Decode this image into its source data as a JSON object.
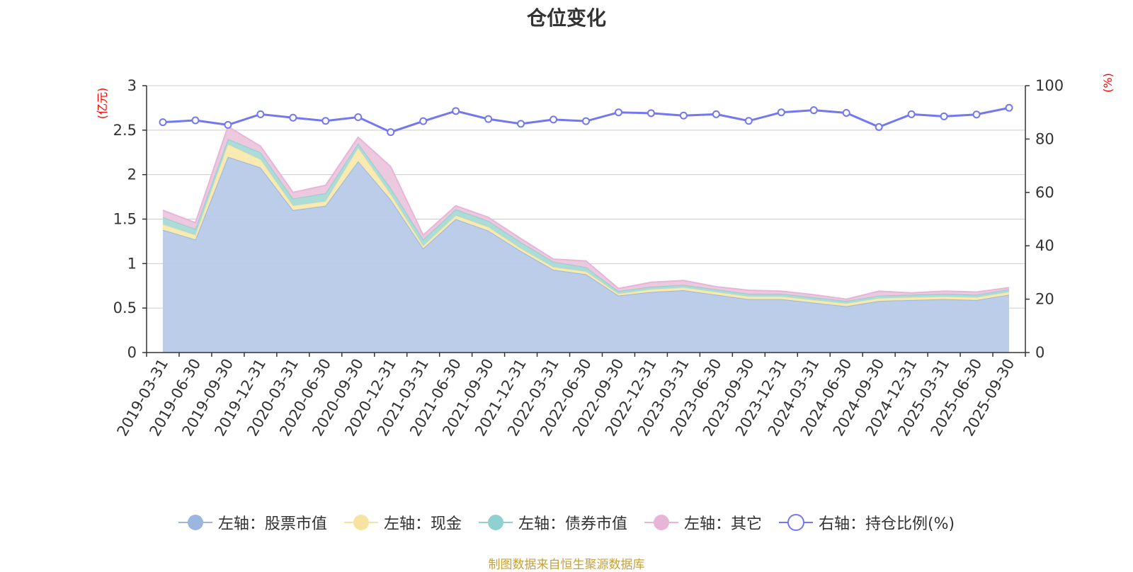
{
  "title": "仓位变化",
  "source_note": "制图数据来自恒生聚源数据库",
  "chart_data": {
    "type": "area",
    "title": "仓位变化",
    "categories": [
      "2019-03-31",
      "2019-06-30",
      "2019-09-30",
      "2019-12-31",
      "2020-03-31",
      "2020-06-30",
      "2020-09-30",
      "2020-12-31",
      "2021-03-31",
      "2021-06-30",
      "2021-09-30",
      "2021-12-31",
      "2022-03-31",
      "2022-06-30",
      "2022-09-30",
      "2022-12-31",
      "2023-03-31",
      "2023-06-30",
      "2023-09-30",
      "2023-12-31",
      "2024-03-31",
      "2024-06-30",
      "2024-09-30",
      "2024-12-31",
      "2025-03-31",
      "2025-06-30",
      "2025-09-30"
    ],
    "left_axis": {
      "name": "(亿元)",
      "min": 0,
      "max": 3,
      "ticks": [
        "0",
        "0.5",
        "1",
        "1.5",
        "2",
        "2.5",
        "3"
      ]
    },
    "right_axis": {
      "name": "(%)",
      "min": 0,
      "max": 100,
      "ticks": [
        "0",
        "20",
        "40",
        "60",
        "80",
        "100"
      ]
    },
    "stacked_series": [
      {
        "name": "左轴：股票市值",
        "color": "#9bb7e0",
        "fill": "#b7cae8",
        "values": [
          1.38,
          1.27,
          2.2,
          2.08,
          1.6,
          1.65,
          2.15,
          1.72,
          1.17,
          1.5,
          1.37,
          1.14,
          0.93,
          0.88,
          0.64,
          0.68,
          0.7,
          0.65,
          0.6,
          0.6,
          0.56,
          0.52,
          0.58,
          0.59,
          0.6,
          0.59,
          0.65
        ]
      },
      {
        "name": "左轴：现金",
        "color": "#f6e3a0",
        "fill": "#f9e9ad",
        "values": [
          0.06,
          0.05,
          0.14,
          0.09,
          0.05,
          0.05,
          0.15,
          0.06,
          0.03,
          0.04,
          0.04,
          0.03,
          0.03,
          0.03,
          0.02,
          0.03,
          0.03,
          0.03,
          0.03,
          0.03,
          0.03,
          0.03,
          0.03,
          0.03,
          0.03,
          0.03,
          0.03
        ]
      },
      {
        "name": "左轴：债券市值",
        "color": "#8fd1d0",
        "fill": "#a8d9d6",
        "values": [
          0.08,
          0.07,
          0.06,
          0.08,
          0.08,
          0.09,
          0.05,
          0.07,
          0.07,
          0.07,
          0.07,
          0.07,
          0.06,
          0.05,
          0.03,
          0.03,
          0.03,
          0.03,
          0.03,
          0.03,
          0.03,
          0.03,
          0.03,
          0.03,
          0.03,
          0.03,
          0.03
        ]
      },
      {
        "name": "左轴：其它",
        "color": "#e8b4d8",
        "fill": "#ecc6dd",
        "values": [
          0.08,
          0.07,
          0.14,
          0.07,
          0.07,
          0.09,
          0.07,
          0.24,
          0.05,
          0.04,
          0.04,
          0.04,
          0.03,
          0.07,
          0.03,
          0.05,
          0.05,
          0.03,
          0.04,
          0.03,
          0.03,
          0.02,
          0.05,
          0.02,
          0.03,
          0.03,
          0.02
        ]
      }
    ],
    "line_series": {
      "name": "右轴：持仓比例(%)",
      "color": "#7378f0",
      "values": [
        86.3,
        87,
        85.3,
        89.3,
        88,
        86.8,
        88.2,
        82.6,
        86.7,
        90.5,
        87.5,
        85.7,
        87.3,
        86.7,
        90,
        89.7,
        88.8,
        89.3,
        86.8,
        90,
        90.8,
        89.8,
        84.5,
        89.3,
        88.5,
        89.2,
        91.7
      ]
    },
    "legend_placement": "bottom",
    "grid": true
  }
}
